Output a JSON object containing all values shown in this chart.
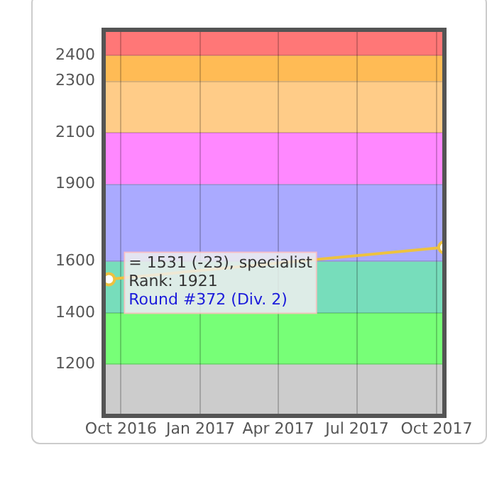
{
  "chart_data": {
    "type": "line",
    "xlim": [
      "2016-09-11",
      "2017-10-10"
    ],
    "xticks": [
      {
        "value": "2016-10-01",
        "label": "Oct 2016"
      },
      {
        "value": "2017-01-01",
        "label": "Jan 2017"
      },
      {
        "value": "2017-04-01",
        "label": "Apr 2017"
      },
      {
        "value": "2017-07-01",
        "label": "Jul 2017"
      },
      {
        "value": "2017-10-01",
        "label": "Oct 2017"
      }
    ],
    "ylim": [
      1000,
      2500
    ],
    "yticks": [
      1200,
      1400,
      1600,
      1900,
      2100,
      2300,
      2400
    ],
    "series": [
      {
        "x": [
          "2016-09-17",
          "2017-10-10"
        ],
        "values": [
          1531,
          1655
        ],
        "color": "#edc240"
      }
    ],
    "bands": [
      {
        "axis": "y",
        "from": 1000,
        "to": 1200,
        "color": "#cccccc"
      },
      {
        "axis": "y",
        "from": 1200,
        "to": 1400,
        "color": "#77ff77"
      },
      {
        "axis": "y",
        "from": 1400,
        "to": 1600,
        "color": "#77ddbb"
      },
      {
        "axis": "y",
        "from": 1600,
        "to": 1900,
        "color": "#aaaaff"
      },
      {
        "axis": "y",
        "from": 1900,
        "to": 2100,
        "color": "#ff88ff"
      },
      {
        "axis": "y",
        "from": 2100,
        "to": 2300,
        "color": "#ffcc88"
      },
      {
        "axis": "y",
        "from": 2300,
        "to": 2400,
        "color": "#ffbb55"
      },
      {
        "axis": "y",
        "from": 2400,
        "to": 2500,
        "color": "#ff7777"
      }
    ],
    "annotations": [
      {
        "text": "= 1531 (-23), specialist\nRank: 1921\nRound #372 (Div. 2)",
        "x": "2016-09-17",
        "y": 1531
      }
    ],
    "grid": true,
    "legend": false,
    "marker": "circle",
    "line_style": "solid"
  }
}
